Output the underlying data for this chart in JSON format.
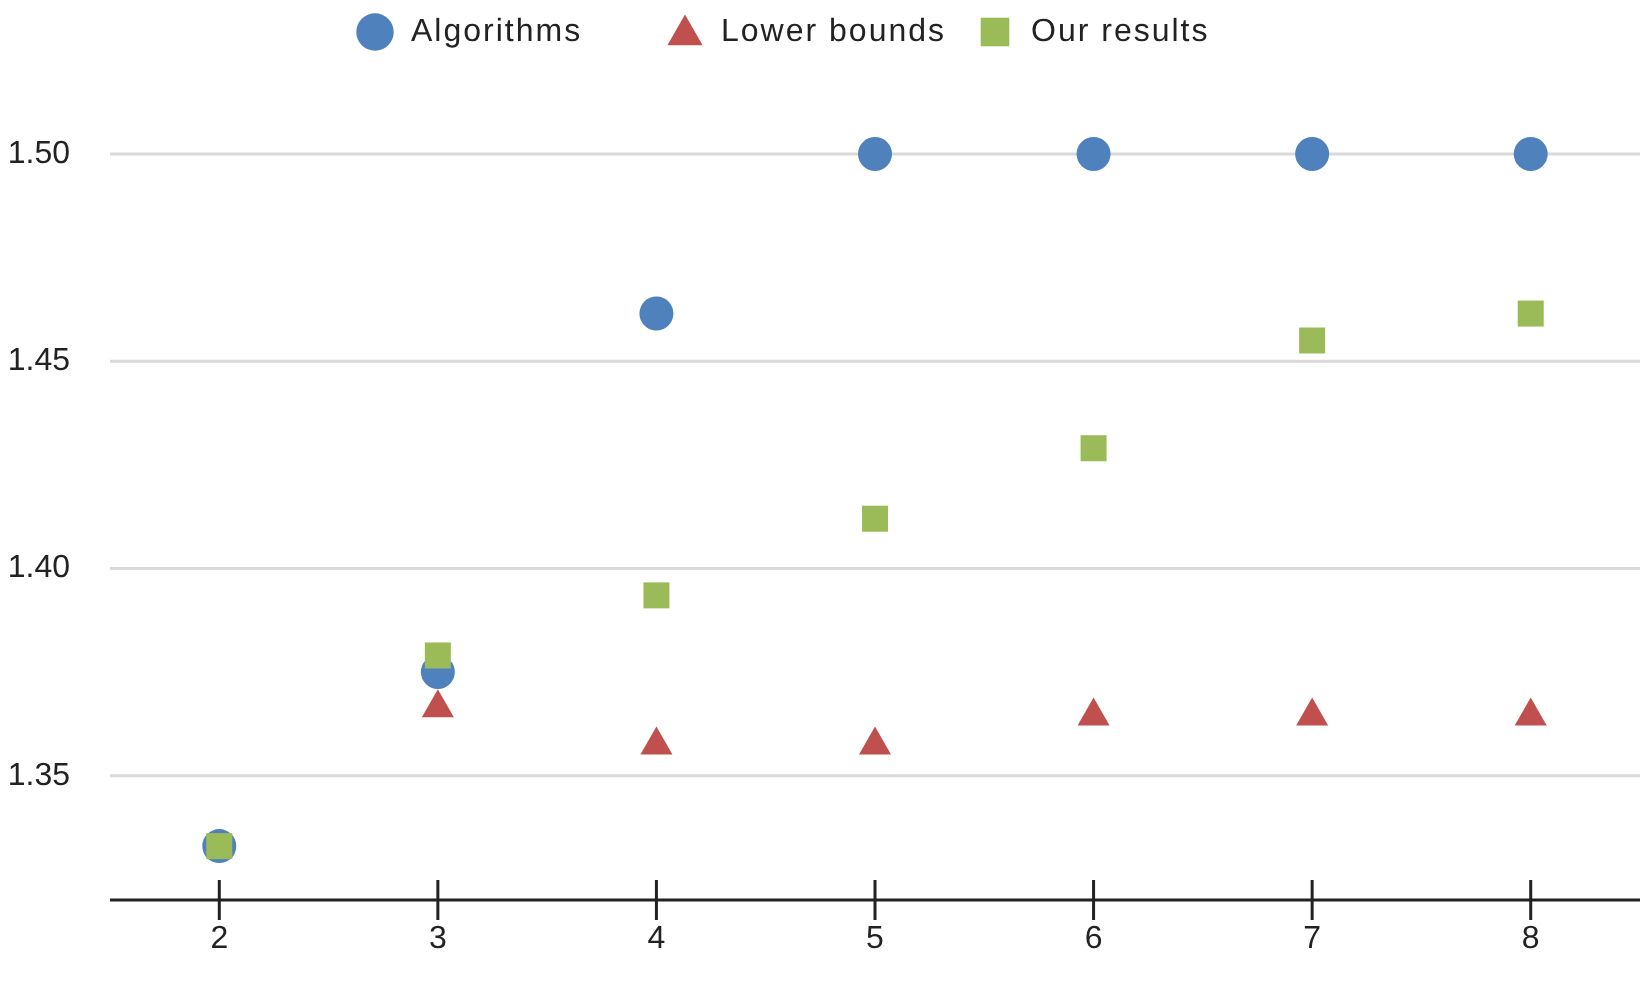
{
  "chart_data": {
    "type": "scatter",
    "categories": [
      "2",
      "3",
      "4",
      "5",
      "6",
      "7",
      "8"
    ],
    "series": [
      {
        "name": "Algorithms",
        "color": "#4f81bd",
        "marker": "circle",
        "values": [
          1.333,
          1.375,
          1.4615,
          1.5,
          1.5,
          1.5,
          1.5
        ]
      },
      {
        "name": "Lower bounds",
        "color": "#c0504d",
        "marker": "triangle",
        "values": [
          null,
          1.367,
          1.358,
          1.358,
          1.365,
          1.365,
          1.365
        ]
      },
      {
        "name": "Our results",
        "color": "#9bbb59",
        "marker": "square",
        "values": [
          1.333,
          1.379,
          1.3935,
          1.412,
          1.429,
          1.455,
          1.4615
        ]
      }
    ],
    "ylim": [
      1.32,
      1.5
    ],
    "yticks": [
      {
        "value": 1.35,
        "label": "1.35"
      },
      {
        "value": 1.4,
        "label": "1.40"
      },
      {
        "value": 1.45,
        "label": "1.45"
      },
      {
        "value": 1.5,
        "label": "1.50"
      }
    ],
    "grid": "y",
    "legend": "top"
  }
}
